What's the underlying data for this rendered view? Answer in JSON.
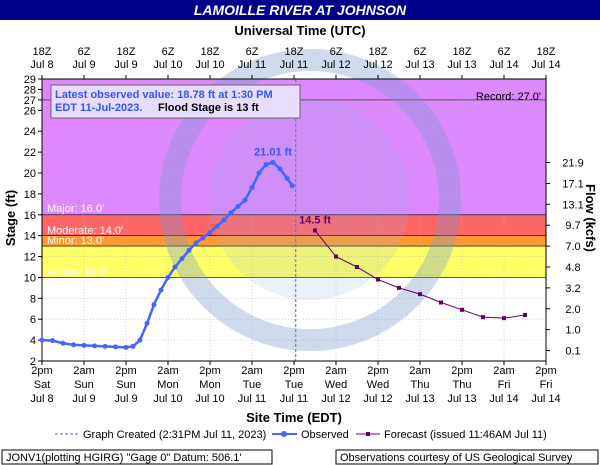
{
  "header": {
    "title": "LAMOILLE RIVER AT JOHNSON",
    "top_axis_title": "Universal Time (UTC)",
    "bottom_axis_title": "Site Time (EDT)",
    "left_axis_title": "Stage (ft)",
    "right_axis_title": "Flow (kcfs)"
  },
  "info_box": {
    "line1": "Latest observed value: 18.78 ft at 1:30 PM",
    "line2_time": "EDT 11-Jul-2023.",
    "line2_flood": "Flood Stage is 13 ft"
  },
  "thresholds": {
    "record": {
      "label": "Record: 27.0'",
      "value": 27.0,
      "color": "#555555"
    },
    "major": {
      "label": "Major: 16.0'",
      "value": 16.0,
      "color": "#dd88ff"
    },
    "moderate": {
      "label": "Moderate: 14.0'",
      "value": 14.0,
      "color": "#ff6666"
    },
    "minor": {
      "label": "Minor: 13.0'",
      "value": 13.0,
      "color": "#ff9933"
    },
    "action": {
      "label": "Action: 10.0'",
      "value": 10.0,
      "color": "#ffff66"
    }
  },
  "peak_labels": {
    "observed": "21.01 ft",
    "forecast": "14.5 ft"
  },
  "legend": {
    "created": "Graph Created (2:31PM Jul 11, 2023)",
    "observed": "Observed",
    "forecast": "Forecast (issued 11:46AM Jul 11)"
  },
  "footer": {
    "left": "JONV1(plotting HGIRG) \"Gage 0\" Datum: 506.1'",
    "right": "Observations courtesy of US Geological Survey"
  },
  "colors": {
    "title_bg": "#00008b",
    "observed": "#4466ff",
    "forecast": "#660066",
    "above_major": "#dd88ff",
    "action_band": "#ffff66"
  },
  "chart_data": {
    "type": "line",
    "x_unit": "hours since Jul 8 2pm EDT",
    "xlim": [
      0,
      144
    ],
    "ylim": [
      2,
      29
    ],
    "y_ticks": [
      2,
      4,
      6,
      8,
      10,
      12,
      14,
      16,
      18,
      20,
      22,
      24,
      26,
      27,
      28,
      29
    ],
    "bottom_ticks": [
      {
        "hour": 0,
        "time": "2pm",
        "day": "Sat",
        "date": "Jul 8"
      },
      {
        "hour": 12,
        "time": "2am",
        "day": "Sun",
        "date": "Jul 9"
      },
      {
        "hour": 24,
        "time": "2pm",
        "day": "Sun",
        "date": "Jul 9"
      },
      {
        "hour": 36,
        "time": "2am",
        "day": "Mon",
        "date": "Jul 10"
      },
      {
        "hour": 48,
        "time": "2pm",
        "day": "Mon",
        "date": "Jul 10"
      },
      {
        "hour": 60,
        "time": "2am",
        "day": "Tue",
        "date": "Jul 11"
      },
      {
        "hour": 72,
        "time": "2pm",
        "day": "Tue",
        "date": "Jul 11"
      },
      {
        "hour": 84,
        "time": "2am",
        "day": "Wed",
        "date": "Jul 12"
      },
      {
        "hour": 96,
        "time": "2pm",
        "day": "Wed",
        "date": "Jul 12"
      },
      {
        "hour": 108,
        "time": "2am",
        "day": "Thu",
        "date": "Jul 13"
      },
      {
        "hour": 120,
        "time": "2pm",
        "day": "Thu",
        "date": "Jul 13"
      },
      {
        "hour": 132,
        "time": "2am",
        "day": "Fri",
        "date": "Jul 14"
      },
      {
        "hour": 144,
        "time": "2pm",
        "day": "Fri",
        "date": "Jul 14"
      }
    ],
    "top_ticks": [
      {
        "hour": 0,
        "time": "18Z",
        "date": "Jul 8"
      },
      {
        "hour": 12,
        "time": "6Z",
        "date": "Jul 9"
      },
      {
        "hour": 24,
        "time": "18Z",
        "date": "Jul 9"
      },
      {
        "hour": 36,
        "time": "6Z",
        "date": "Jul 10"
      },
      {
        "hour": 48,
        "time": "18Z",
        "date": "Jul 10"
      },
      {
        "hour": 60,
        "time": "6Z",
        "date": "Jul 11"
      },
      {
        "hour": 72,
        "time": "18Z",
        "date": "Jul 11"
      },
      {
        "hour": 84,
        "time": "6Z",
        "date": "Jul 12"
      },
      {
        "hour": 96,
        "time": "18Z",
        "date": "Jul 12"
      },
      {
        "hour": 108,
        "time": "6Z",
        "date": "Jul 13"
      },
      {
        "hour": 120,
        "time": "18Z",
        "date": "Jul 13"
      },
      {
        "hour": 132,
        "time": "6Z",
        "date": "Jul 14"
      },
      {
        "hour": 144,
        "time": "18Z",
        "date": "Jul 14"
      }
    ],
    "flow_ticks": [
      {
        "stage": 3,
        "label": "0.1"
      },
      {
        "stage": 5,
        "label": "1.0"
      },
      {
        "stage": 7,
        "label": "2.0"
      },
      {
        "stage": 9,
        "label": "3.2"
      },
      {
        "stage": 11,
        "label": "4.8"
      },
      {
        "stage": 13,
        "label": "7.0"
      },
      {
        "stage": 15,
        "label": "9.7"
      },
      {
        "stage": 17,
        "label": "13.1"
      },
      {
        "stage": 19,
        "label": "17.1"
      },
      {
        "stage": 21,
        "label": "21.9"
      }
    ],
    "graph_created_hour": 72.5,
    "series": [
      {
        "name": "Observed",
        "x": [
          0,
          3,
          6,
          9,
          12,
          15,
          18,
          21,
          24,
          26,
          28,
          30,
          32,
          34,
          36,
          38,
          40,
          42,
          44,
          46,
          48,
          50,
          52,
          54,
          56,
          58,
          60,
          62,
          64,
          66,
          68,
          70,
          71.5
        ],
        "y": [
          4.0,
          3.95,
          3.7,
          3.55,
          3.5,
          3.45,
          3.4,
          3.35,
          3.3,
          3.4,
          4.0,
          5.6,
          7.4,
          8.8,
          10.0,
          11.0,
          11.8,
          12.6,
          13.3,
          13.8,
          14.3,
          14.9,
          15.5,
          16.2,
          16.8,
          17.4,
          18.6,
          20.0,
          20.8,
          21.01,
          20.4,
          19.5,
          18.78
        ]
      },
      {
        "name": "Forecast",
        "x": [
          78,
          84,
          90,
          96,
          102,
          108,
          114,
          120,
          126,
          132,
          138
        ],
        "y": [
          14.5,
          12.0,
          11.0,
          9.8,
          9.0,
          8.4,
          7.6,
          6.9,
          6.2,
          6.1,
          6.4
        ]
      }
    ]
  }
}
